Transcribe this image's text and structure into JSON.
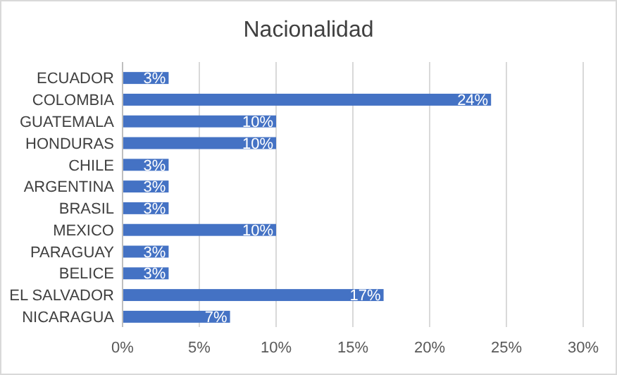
{
  "chart_data": {
    "type": "bar",
    "orientation": "horizontal",
    "title": "Nacionalidad",
    "categories": [
      "ECUADOR",
      "COLOMBIA",
      "GUATEMALA",
      "HONDURAS",
      "CHILE",
      "ARGENTINA",
      "BRASIL",
      "MEXICO",
      "PARAGUAY",
      "BELICE",
      "EL SALVADOR",
      "NICARAGUA"
    ],
    "values": [
      3,
      24,
      10,
      10,
      3,
      3,
      3,
      10,
      3,
      3,
      17,
      7
    ],
    "value_labels": [
      "3%",
      "24%",
      "10%",
      "10%",
      "3%",
      "3%",
      "3%",
      "10%",
      "3%",
      "3%",
      "17%",
      "7%"
    ],
    "color": "#4472c4",
    "xlim": [
      0,
      30
    ],
    "xticks": [
      {
        "value": 0,
        "label": "0%"
      },
      {
        "value": 5,
        "label": "5%"
      },
      {
        "value": 10,
        "label": "10%"
      },
      {
        "value": 15,
        "label": "15%"
      },
      {
        "value": 20,
        "label": "20%"
      },
      {
        "value": 25,
        "label": "25%"
      },
      {
        "value": 30,
        "label": "30%"
      }
    ],
    "grid": "x"
  }
}
